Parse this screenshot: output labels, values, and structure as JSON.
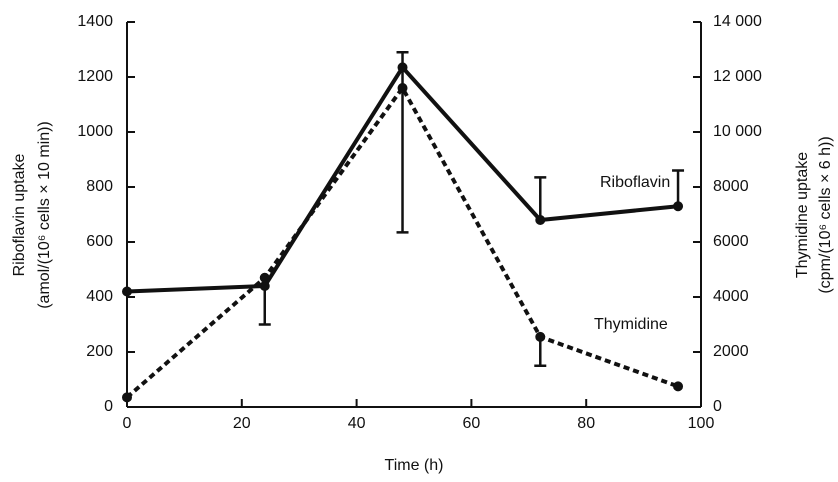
{
  "chart_data": {
    "type": "line",
    "xlabel": "Time (h)",
    "ylabel": [
      "Riboflavin uptake",
      "(amol/(10⁶ cells × 10 min))"
    ],
    "y2label": [
      "Thymidine uptake",
      "(cpm/(10⁶ cells × 6 h))"
    ],
    "x": [
      0,
      24,
      48,
      72,
      96
    ],
    "xlim": [
      0,
      100
    ],
    "xticks": [
      0,
      20,
      40,
      60,
      80,
      100
    ],
    "ylim": [
      0,
      1400
    ],
    "yticks": [
      0,
      200,
      400,
      600,
      800,
      1000,
      1200,
      1400
    ],
    "y2lim": [
      0,
      14000
    ],
    "y2ticks": [
      0,
      2000,
      4000,
      6000,
      8000,
      {
        "value": 10000,
        "label": "10 000"
      },
      {
        "value": 12000,
        "label": "12 000"
      },
      {
        "value": 14000,
        "label": "14 000"
      }
    ],
    "series": [
      {
        "name": "Riboflavin",
        "color": "#111111",
        "dashed": false,
        "values": [
          420,
          440,
          1235,
          680,
          730
        ],
        "error_low": [
          null,
          300,
          635,
          null,
          null
        ],
        "error_high": [
          null,
          null,
          1290,
          835,
          860
        ]
      },
      {
        "name": "Thymidine",
        "color": "#111111",
        "dashed": true,
        "axis": "y2",
        "values": [
          350,
          4700,
          11600,
          2550,
          750
        ],
        "error_low": [
          null,
          null,
          null,
          1500,
          null
        ],
        "error_high": [
          null,
          null,
          null,
          null,
          null
        ]
      }
    ]
  }
}
